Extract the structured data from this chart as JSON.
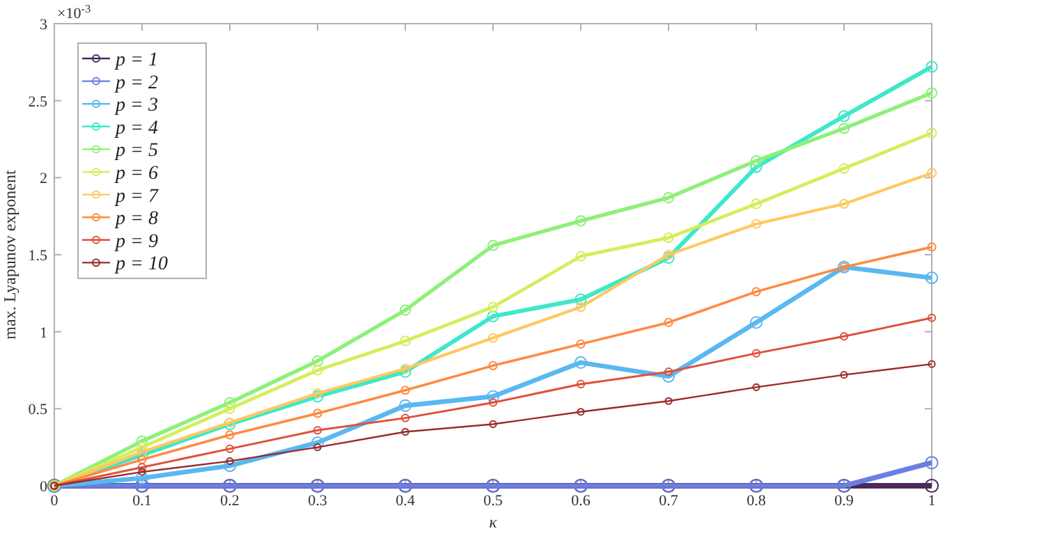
{
  "chart_data": {
    "type": "line",
    "xlabel": "κ",
    "ylabel": "max. Lyapunov exponent",
    "annotations": [
      "×10$^{-3}$"
    ],
    "x": [
      0,
      0.1,
      0.2,
      0.3,
      0.4,
      0.5,
      0.6,
      0.7,
      0.8,
      0.9,
      1
    ],
    "xlim": [
      0,
      1
    ],
    "xticks": [
      0,
      0.1,
      0.2,
      0.3,
      0.4,
      0.5,
      0.6,
      0.7,
      0.8,
      0.9,
      1
    ],
    "ylim": [
      0,
      3
    ],
    "yticks": [
      0,
      0.5,
      1,
      1.5,
      2,
      2.5,
      3
    ],
    "grid": false,
    "legend": "top left",
    "marker": "circle",
    "line_style": "solid",
    "series": [
      {
        "name": "p = 1",
        "color": "#4b2a5a",
        "values": [
          0,
          0,
          0,
          0,
          0,
          0,
          0,
          0,
          0,
          0,
          0
        ]
      },
      {
        "name": "p = 2",
        "color": "#6a7fe0",
        "values": [
          0,
          0,
          0,
          0,
          0,
          0,
          0,
          0,
          0,
          0,
          0.15
        ]
      },
      {
        "name": "p = 3",
        "color": "#5ab8f0",
        "values": [
          0,
          0.05,
          0.13,
          0.28,
          0.52,
          0.58,
          0.8,
          0.71,
          1.06,
          1.42,
          1.35
        ]
      },
      {
        "name": "p = 4",
        "color": "#3ee8c8",
        "values": [
          0,
          0.2,
          0.4,
          0.58,
          0.74,
          1.1,
          1.21,
          1.48,
          2.07,
          2.4,
          2.72
        ]
      },
      {
        "name": "p = 5",
        "color": "#8ef07a",
        "values": [
          0,
          0.29,
          0.54,
          0.81,
          1.14,
          1.56,
          1.72,
          1.87,
          2.11,
          2.32,
          2.55
        ]
      },
      {
        "name": "p = 6",
        "color": "#d4ee5a",
        "values": [
          0,
          0.25,
          0.5,
          0.75,
          0.94,
          1.16,
          1.49,
          1.61,
          1.83,
          2.06,
          2.29
        ]
      },
      {
        "name": "p = 7",
        "color": "#ffc860",
        "values": [
          0,
          0.22,
          0.41,
          0.6,
          0.76,
          0.96,
          1.16,
          1.5,
          1.7,
          1.83,
          2.03
        ]
      },
      {
        "name": "p = 8",
        "color": "#ff8a40",
        "values": [
          0,
          0.17,
          0.33,
          0.47,
          0.62,
          0.78,
          0.92,
          1.06,
          1.26,
          1.42,
          1.55
        ]
      },
      {
        "name": "p = 9",
        "color": "#e0503a",
        "values": [
          0,
          0.12,
          0.24,
          0.36,
          0.44,
          0.54,
          0.66,
          0.74,
          0.86,
          0.97,
          1.09
        ]
      },
      {
        "name": "p = 10",
        "color": "#9a2a2a",
        "values": [
          0,
          0.09,
          0.16,
          0.25,
          0.35,
          0.4,
          0.48,
          0.55,
          0.64,
          0.72,
          0.79
        ]
      }
    ]
  }
}
